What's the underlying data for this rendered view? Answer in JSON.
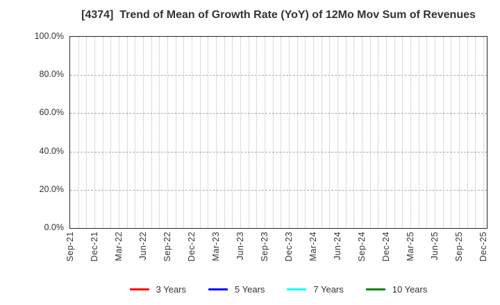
{
  "chart_data": {
    "type": "line",
    "title": "[4374]  Trend of Mean of Growth Rate (YoY) of 12Mo Mov Sum of Revenues",
    "xlabel": "",
    "ylabel": "",
    "x_tick_labels": [
      "Sep-21",
      "Dec-21",
      "Mar-22",
      "Jun-22",
      "Sep-22",
      "Dec-22",
      "Mar-23",
      "Jun-23",
      "Sep-23",
      "Dec-23",
      "Mar-24",
      "Jun-24",
      "Sep-24",
      "Dec-24",
      "Mar-25",
      "Jun-25",
      "Sep-25",
      "Dec-25"
    ],
    "y_ticks": [
      0,
      20,
      40,
      60,
      80,
      100
    ],
    "y_tick_labels": [
      "0.0%",
      "20.0%",
      "40.0%",
      "60.0%",
      "80.0%",
      "100.0%"
    ],
    "ylim": [
      0,
      100
    ],
    "grid": "on",
    "minor_vertical_grid": "monthly",
    "legend_position": "bottom",
    "series": [
      {
        "name": "3 Years",
        "color": "#ff0000",
        "values": []
      },
      {
        "name": "5 Years",
        "color": "#0000ff",
        "values": []
      },
      {
        "name": "7 Years",
        "color": "#00ffff",
        "values": []
      },
      {
        "name": "10 Years",
        "color": "#008000",
        "values": []
      }
    ],
    "plotted_data_visible": "none"
  },
  "colors": {
    "background": "#ffffff",
    "plot_border": "#262626",
    "grid_dashed_horizontal": "#a8a8a8",
    "grid_dotted_vertical": "#b8b8b8",
    "text": "#333333"
  }
}
